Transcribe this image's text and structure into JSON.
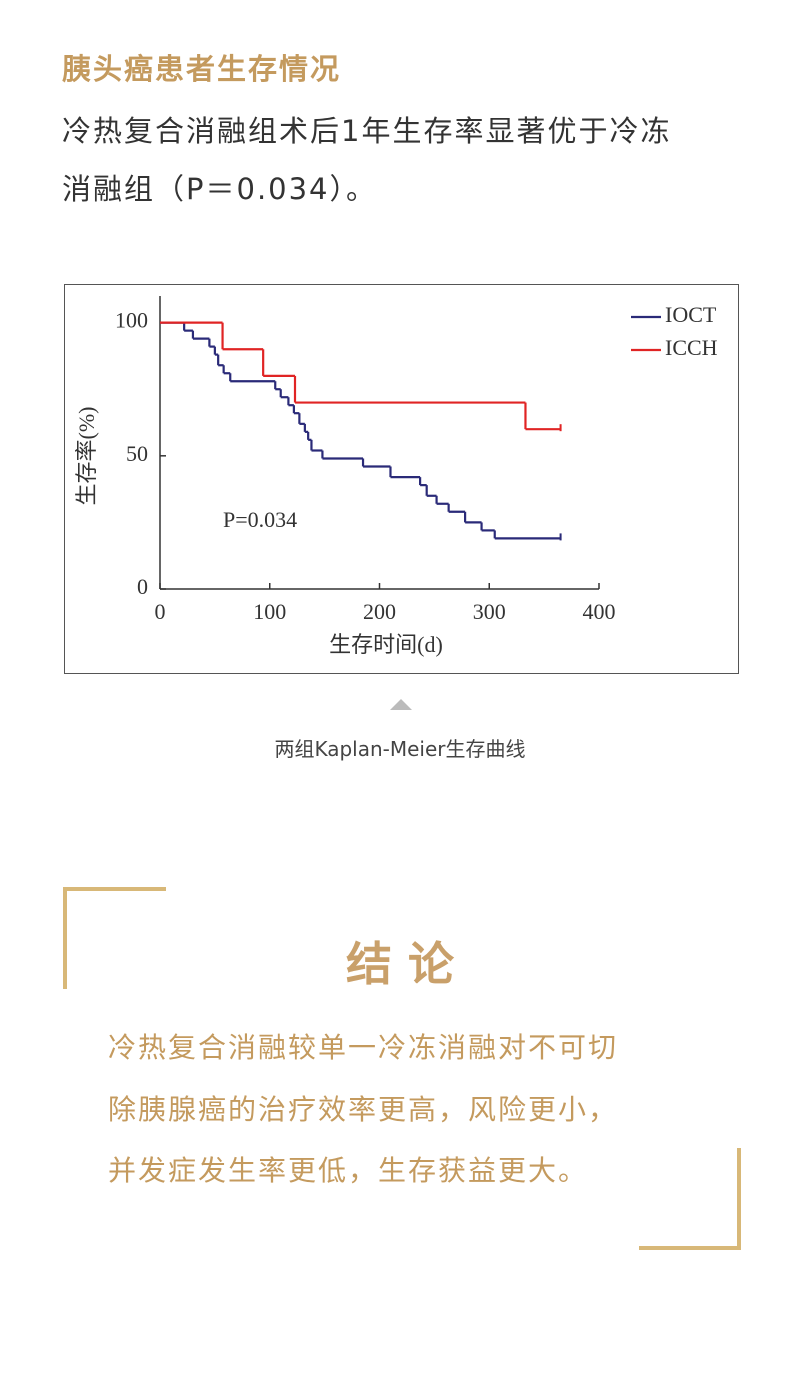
{
  "header": {
    "title": "胰头癌患者生存情况"
  },
  "intro": {
    "lines": [
      "冷热复合消融组术后1年生存率显著优于冷冻",
      "消融组（P＝0.034）。"
    ]
  },
  "chart_data": {
    "type": "step-line",
    "xlabel": "生存时间(d)",
    "ylabel": "生存率(%)",
    "annotation": "P=0.034",
    "xlim": [
      0,
      400
    ],
    "xticks": [
      0,
      100,
      200,
      300,
      400
    ],
    "ylim": [
      0,
      110
    ],
    "yticks": [
      0,
      50,
      100
    ],
    "legend": "upper right",
    "series": [
      {
        "name": "IOCT",
        "color": "#2a2a78",
        "x": [
          0,
          22,
          30,
          45,
          50,
          53,
          58,
          64,
          105,
          110,
          117,
          122,
          127,
          132,
          135,
          138,
          148,
          185,
          210,
          237,
          243,
          252,
          263,
          278,
          293,
          305,
          365
        ],
        "values": [
          100,
          97,
          94,
          91,
          88,
          84,
          81,
          78,
          75,
          72,
          69,
          66,
          62,
          59,
          56,
          52,
          49,
          46,
          42,
          39,
          35,
          32,
          29,
          25,
          22,
          19,
          19
        ]
      },
      {
        "name": "ICCH",
        "color": "#e02424",
        "x": [
          0,
          57,
          94,
          123,
          333,
          365
        ],
        "values": [
          100,
          90,
          80,
          70,
          60,
          60
        ]
      }
    ]
  },
  "caption": "两组Kaplan-Meier生存曲线",
  "conclusion": {
    "title": "结 论",
    "lines": [
      "冷热复合消融较单一冷冻消融对不可切",
      "除胰腺癌的治疗效率更高，风险更小，",
      "并发症发生率更低，生存获益更大。"
    ]
  }
}
